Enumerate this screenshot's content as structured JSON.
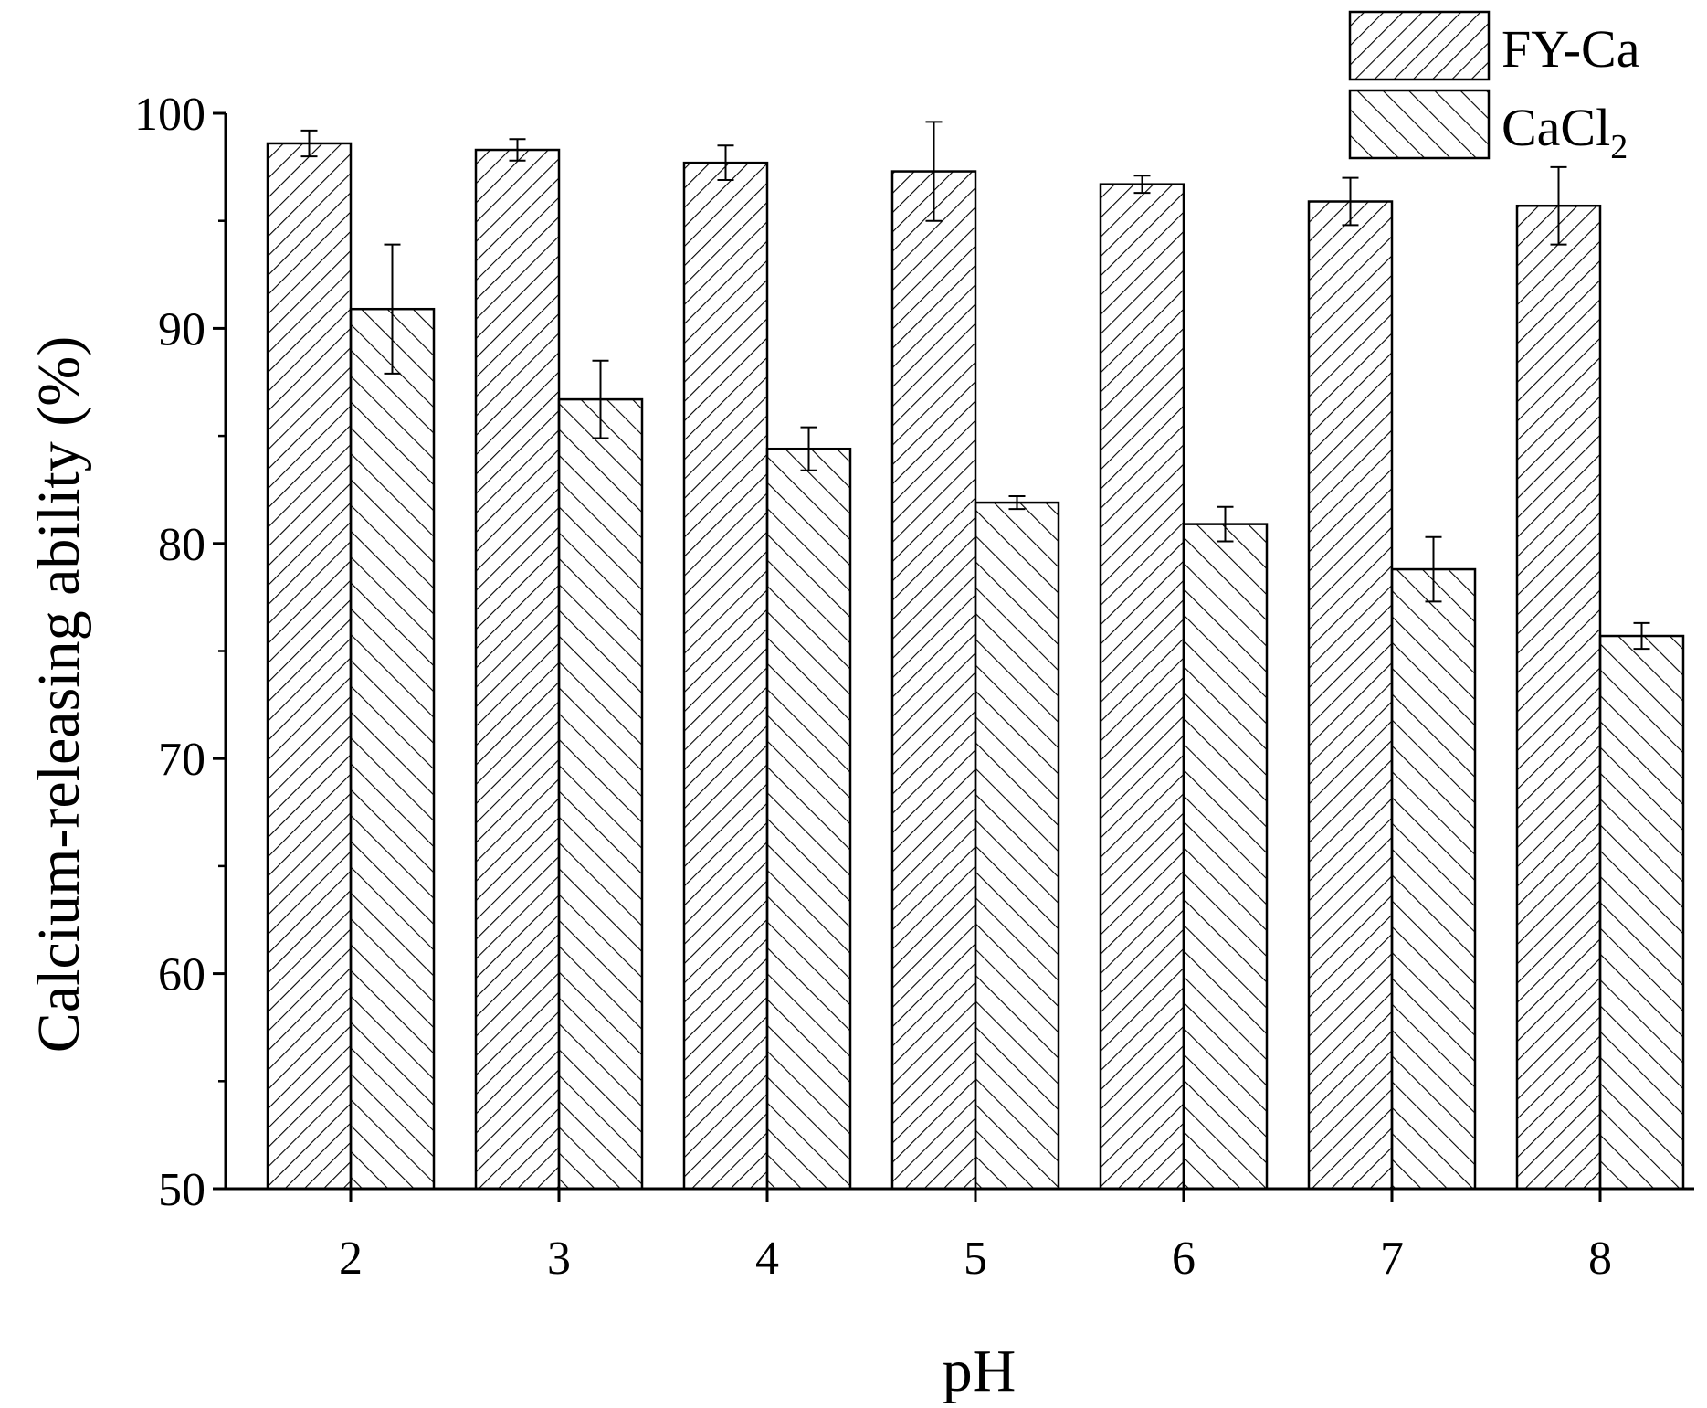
{
  "chart_data": {
    "type": "bar",
    "categories": [
      "2",
      "3",
      "4",
      "5",
      "6",
      "7",
      "8"
    ],
    "series": [
      {
        "name": "FY-Ca",
        "values": [
          98.6,
          98.3,
          97.7,
          97.3,
          96.7,
          95.9,
          95.7
        ],
        "errors": [
          0.6,
          0.5,
          0.8,
          2.3,
          0.4,
          1.1,
          1.8
        ],
        "hatch": "forward"
      },
      {
        "name": "CaCl",
        "name_subscript": "2",
        "values": [
          90.9,
          86.7,
          84.4,
          81.9,
          80.9,
          78.8,
          75.7
        ],
        "errors": [
          3.0,
          1.8,
          1.0,
          0.3,
          0.8,
          1.5,
          0.6
        ],
        "hatch": "backward"
      }
    ],
    "title": "",
    "xlabel": "pH",
    "ylabel": "Calcium-releasing ability (%)",
    "ylim": [
      50,
      100
    ],
    "yticks": [
      "50",
      "60",
      "70",
      "80",
      "90",
      "100"
    ],
    "grid": false,
    "legend_position": "top-right",
    "colors": {
      "ink": "#000000",
      "background": "#ffffff"
    }
  }
}
